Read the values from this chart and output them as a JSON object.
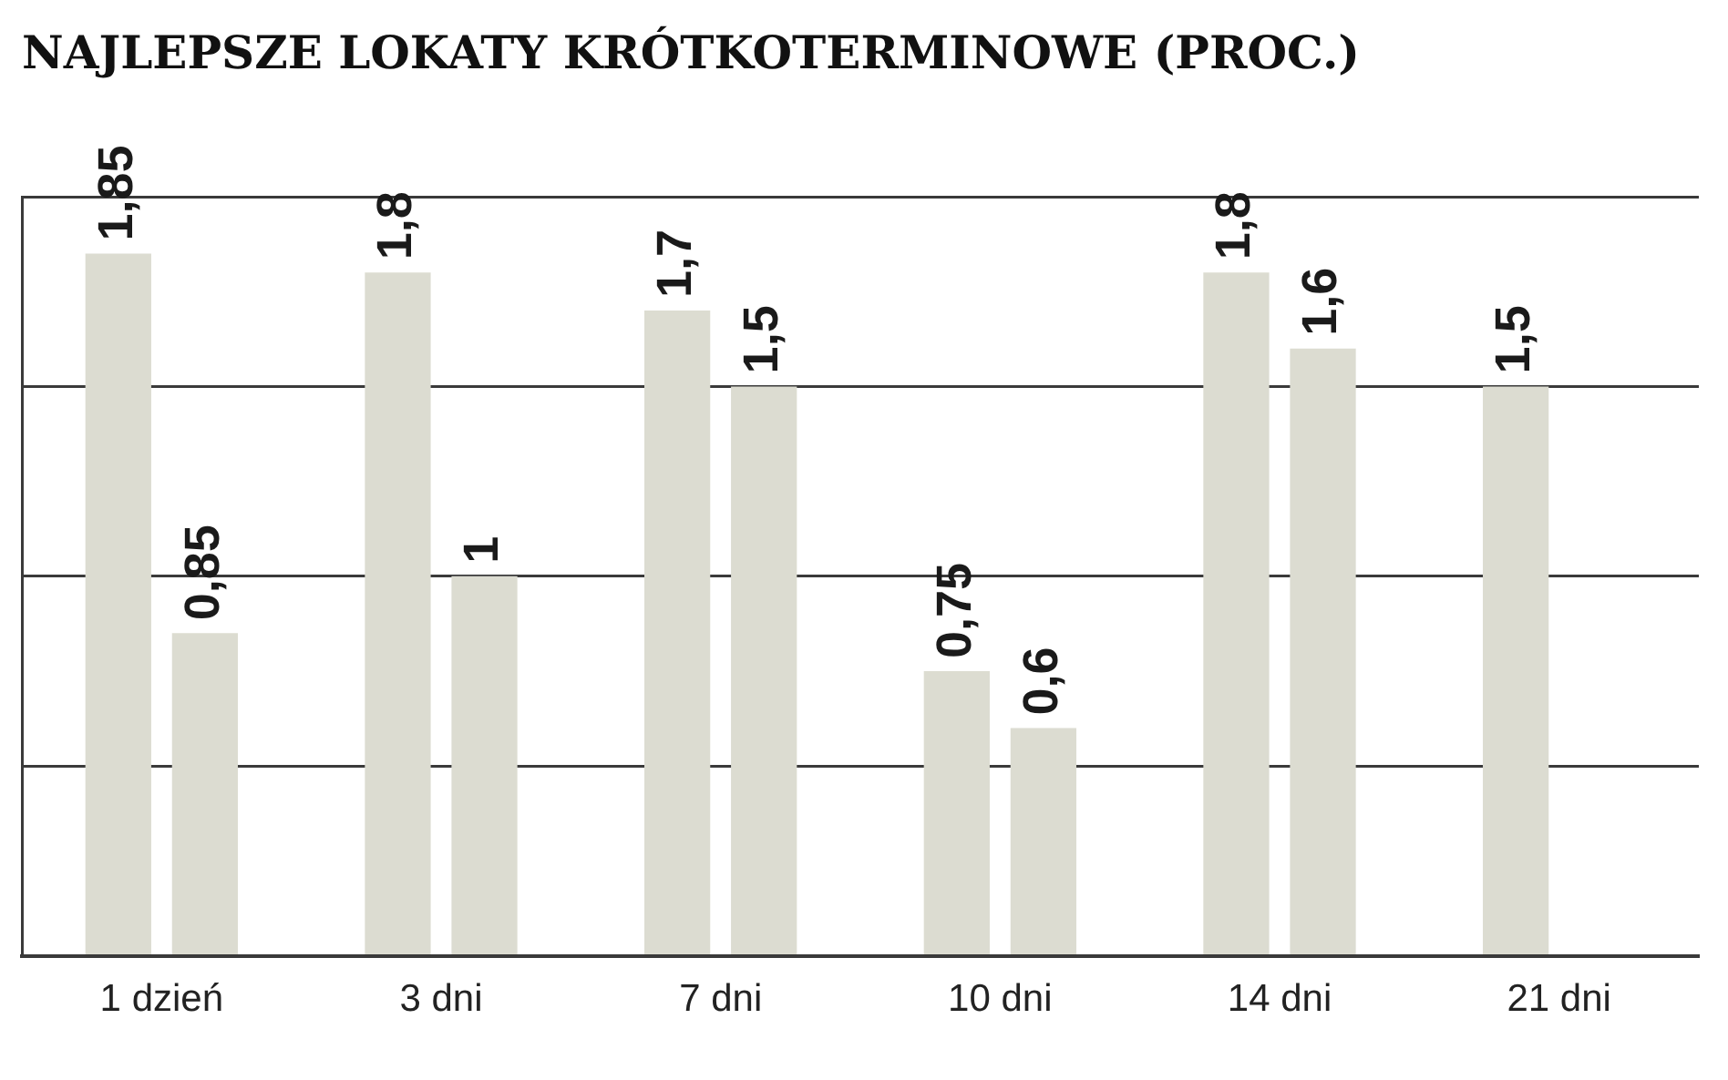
{
  "chart_data": {
    "type": "bar",
    "title": "NAJLEPSZE LOKATY KRÓTKOTERMINOWE (PROC.)",
    "categories": [
      "1 dzień",
      "3 dni",
      "7 dni",
      "10 dni",
      "14 dni",
      "21 dni"
    ],
    "series": [
      {
        "color": "#dcdcd1",
        "values": [
          1.85,
          1.8,
          1.7,
          0.75,
          1.8,
          1.5
        ],
        "value_labels": [
          "1,85",
          "1,8",
          "1,7",
          "0,75",
          "1,8",
          "1,5"
        ]
      },
      {
        "color": "#dcdcd1",
        "values": [
          0.85,
          1,
          1.5,
          0.6,
          1.6,
          null
        ],
        "value_labels": [
          "0,85",
          "1",
          "1,5",
          "0,6",
          "1,6",
          null
        ]
      }
    ],
    "ylim": [
      0,
      2
    ],
    "yticks": [
      {
        "value": 0,
        "label": null
      },
      {
        "value": 0.5,
        "label": null
      },
      {
        "value": 1,
        "label": null
      },
      {
        "value": 1.5,
        "label": null
      },
      {
        "value": 2,
        "label": null
      }
    ],
    "grid": "y",
    "tick_labels": "x"
  }
}
